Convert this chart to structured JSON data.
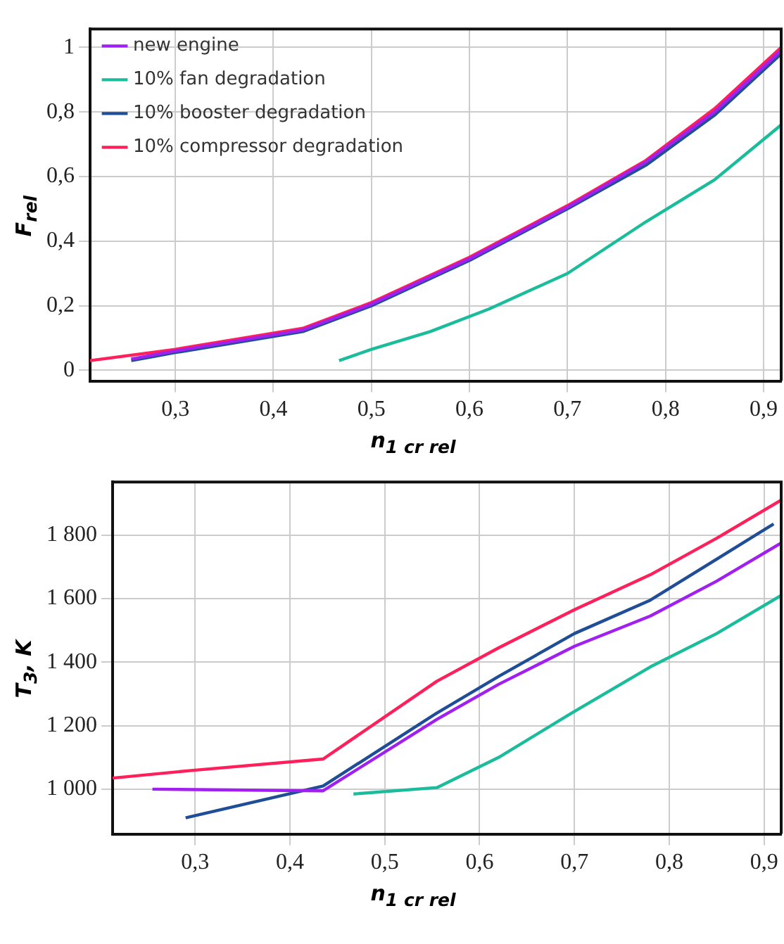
{
  "chart_data": [
    {
      "type": "line",
      "xlabel": "n$_{1 cr rel}$",
      "ylabel": "F$_{rel}$",
      "xlim": [
        0.213,
        0.918
      ],
      "ylim": [
        -0.033,
        1.057
      ],
      "xticks": [
        {
          "value": 0.3,
          "label": "0,3"
        },
        {
          "value": 0.4,
          "label": "0,4"
        },
        {
          "value": 0.5,
          "label": "0,5"
        },
        {
          "value": 0.6,
          "label": "0,6"
        },
        {
          "value": 0.7,
          "label": "0,7"
        },
        {
          "value": 0.8,
          "label": "0,8"
        },
        {
          "value": 0.9,
          "label": "0,9"
        }
      ],
      "yticks": [
        0,
        {
          "value": 0.2,
          "label": "0,2"
        },
        {
          "value": 0.4,
          "label": "0,4"
        },
        {
          "value": 0.6,
          "label": "0,6"
        },
        {
          "value": 0.8,
          "label": "0,8"
        },
        1
      ],
      "grid": true,
      "legend": "top left",
      "marker": "none",
      "series": [
        {
          "name": "new engine",
          "color": "#a020f0",
          "x": [
            0.255,
            0.3,
            0.43,
            0.5,
            0.6,
            0.7,
            0.78,
            0.85,
            0.918
          ],
          "values": [
            0.035,
            0.06,
            0.125,
            0.205,
            0.345,
            0.505,
            0.645,
            0.8,
            0.99
          ]
        },
        {
          "name": "10% fan degradation",
          "color": "#1abc9c",
          "x": [
            0.467,
            0.5,
            0.56,
            0.62,
            0.7,
            0.78,
            0.85,
            0.918
          ],
          "values": [
            0.03,
            0.065,
            0.12,
            0.19,
            0.3,
            0.46,
            0.59,
            0.76
          ]
        },
        {
          "name": "10% booster degradation",
          "color": "#1f4e96",
          "x": [
            0.255,
            0.3,
            0.43,
            0.5,
            0.6,
            0.7,
            0.78,
            0.85,
            0.918
          ],
          "values": [
            0.03,
            0.055,
            0.12,
            0.2,
            0.34,
            0.5,
            0.635,
            0.79,
            0.98
          ]
        },
        {
          "name": "10% compressor degradation",
          "color": "#ff1f5a",
          "x": [
            0.213,
            0.3,
            0.43,
            0.5,
            0.6,
            0.7,
            0.78,
            0.85,
            0.918
          ],
          "values": [
            0.03,
            0.065,
            0.13,
            0.21,
            0.35,
            0.51,
            0.65,
            0.81,
            1.0
          ]
        }
      ]
    },
    {
      "type": "line",
      "xlabel": "n$_{1 cr rel}$",
      "ylabel": "T$_{3}$, K",
      "xlim": [
        0.213,
        0.918
      ],
      "ylim": [
        859,
        1967
      ],
      "xticks": [
        {
          "value": 0.3,
          "label": "0,3"
        },
        {
          "value": 0.4,
          "label": "0,4"
        },
        {
          "value": 0.5,
          "label": "0,5"
        },
        {
          "value": 0.6,
          "label": "0,6"
        },
        {
          "value": 0.7,
          "label": "0,7"
        },
        {
          "value": 0.8,
          "label": "0,8"
        },
        {
          "value": 0.9,
          "label": "0,9"
        }
      ],
      "yticks": [
        {
          "value": 1000,
          "label": "1 000"
        },
        {
          "value": 1200,
          "label": "1 200"
        },
        {
          "value": 1400,
          "label": "1 400"
        },
        {
          "value": 1600,
          "label": "1 600"
        },
        {
          "value": 1800,
          "label": "1 800"
        }
      ],
      "grid": true,
      "marker": "none",
      "series": [
        {
          "color": "#a020f0",
          "x": [
            0.255,
            0.435,
            0.555,
            0.62,
            0.7,
            0.78,
            0.85,
            0.918
          ],
          "values": [
            1000,
            995,
            1220,
            1330,
            1450,
            1545,
            1655,
            1775
          ]
        },
        {
          "color": "#1abc9c",
          "x": [
            0.467,
            0.555,
            0.62,
            0.7,
            0.78,
            0.85,
            0.918
          ],
          "values": [
            985,
            1005,
            1100,
            1245,
            1385,
            1490,
            1610
          ]
        },
        {
          "color": "#1f4e96",
          "x": [
            0.29,
            0.435,
            0.555,
            0.62,
            0.7,
            0.78,
            0.91
          ],
          "values": [
            910,
            1010,
            1240,
            1355,
            1490,
            1595,
            1835
          ]
        },
        {
          "color": "#ff1f5a",
          "x": [
            0.213,
            0.3,
            0.435,
            0.555,
            0.62,
            0.7,
            0.78,
            0.85,
            0.918
          ],
          "values": [
            1035,
            1060,
            1095,
            1340,
            1445,
            1565,
            1675,
            1790,
            1910
          ]
        }
      ]
    }
  ]
}
